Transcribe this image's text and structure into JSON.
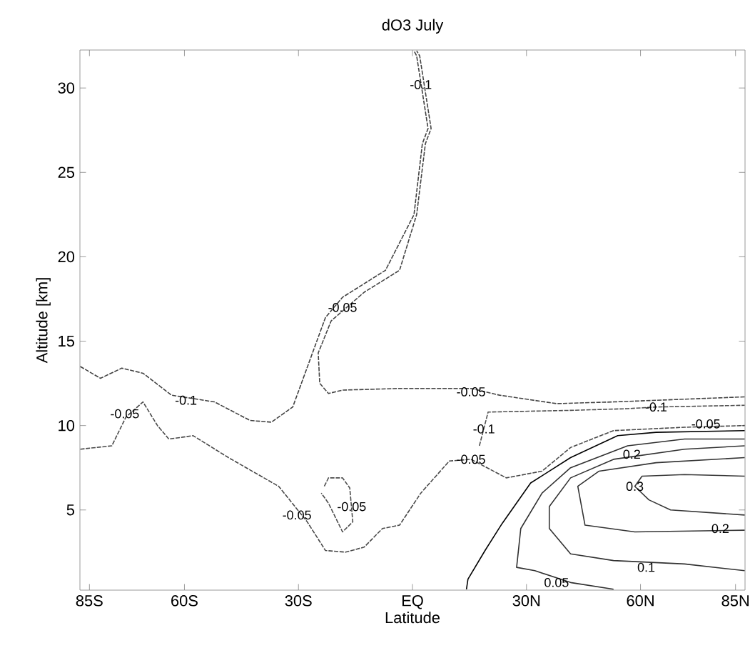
{
  "chart_data": {
    "type": "line",
    "title": "dO3 July",
    "xlabel": "Latitude",
    "ylabel": "Altitude [km]",
    "xlim": [
      -87.5,
      87.5
    ],
    "ylim": [
      0.25,
      32.25
    ],
    "xticks": [
      {
        "value": -85,
        "label": "85S"
      },
      {
        "value": -60,
        "label": "60S"
      },
      {
        "value": -30,
        "label": "30S"
      },
      {
        "value": 0,
        "label": "EQ"
      },
      {
        "value": 30,
        "label": "30N"
      },
      {
        "value": 60,
        "label": "60N"
      },
      {
        "value": 85,
        "label": "85N"
      }
    ],
    "yticks": [
      5,
      10,
      15,
      20,
      25,
      30
    ],
    "grid": false,
    "marker": "none",
    "series": [
      {
        "color": "#404040",
        "line_style": "dashed",
        "x": [
          -87.4,
          -82.1,
          -76.5,
          -70.9,
          -63.4,
          -52.1,
          -42.7,
          -37.1,
          -31.5,
          -22.9,
          -18.4,
          -7.1,
          0.4,
          2.6,
          4.1,
          1.1,
          0.4
        ],
        "values": [
          13.5,
          12.8,
          13.4,
          13.1,
          11.8,
          11.4,
          10.3,
          10.2,
          11.1,
          16.4,
          17.6,
          19.2,
          22.5,
          26.7,
          27.6,
          31.9,
          32.2
        ]
      },
      {
        "color": "#444444",
        "line_style": "dashed",
        "x": [
          87.4,
          52.9,
          37.9,
          22.9,
          15.4,
          -3.4,
          -18.4,
          -22.1,
          -24.4,
          -24.8,
          -21.4,
          -12.7,
          -3.4,
          1.1,
          3.4,
          4.9,
          1.9,
          1.1
        ],
        "values": [
          11.7,
          11.4,
          11.3,
          11.8,
          12.2,
          12.2,
          12.1,
          11.9,
          12.5,
          14.3,
          16.2,
          17.9,
          19.2,
          22.5,
          26.7,
          27.6,
          31.9,
          32.2
        ]
      },
      {
        "color": "#484848",
        "line_style": "dashed",
        "x": [
          -87.4,
          -79.1,
          -75.4,
          -70.9,
          -67.1,
          -64.1,
          -57.7,
          -48.4,
          -35.2,
          -27.7,
          -22.9,
          -17.6,
          -12.7,
          -7.9,
          -3.4,
          2.2,
          9.7,
          15.4,
          24.7,
          34.1,
          41.6,
          52.9,
          71.6,
          87.4
        ],
        "values": [
          8.6,
          8.8,
          10.5,
          11.4,
          10.0,
          9.2,
          9.4,
          8.1,
          6.4,
          4.3,
          2.6,
          2.5,
          2.8,
          3.9,
          4.1,
          6.0,
          7.9,
          8.0,
          6.9,
          7.3,
          8.7,
          9.7,
          9.9,
          10.0
        ]
      },
      {
        "color": "#4c4c4c",
        "line_style": "dashed",
        "x": [
          -23.2,
          -22.1,
          -18.4,
          -16.5,
          -15.7,
          -18.4,
          -22.1,
          -24.0
        ],
        "values": [
          6.4,
          6.9,
          6.9,
          6.3,
          4.3,
          3.7,
          5.4,
          6.0
        ]
      },
      {
        "color": "#505050",
        "line_style": "dashed",
        "x": [
          17.6,
          19.9,
          41.6,
          56.6,
          64.1,
          87.4
        ],
        "values": [
          8.8,
          10.8,
          10.9,
          11.0,
          11.1,
          11.2
        ]
      },
      {
        "color": "#000000",
        "line_style": "solid",
        "x": [
          14.2,
          14.6,
          19.1,
          23.6,
          31.1,
          41.6,
          54.0,
          64.1,
          87.4
        ],
        "values": [
          0.3,
          0.9,
          2.6,
          4.2,
          6.6,
          8.1,
          9.4,
          9.6,
          9.7
        ]
      },
      {
        "color": "#303030",
        "line_style": "solid",
        "x": [
          52.9,
          41.6,
          32.2,
          27.4,
          28.5,
          34.1,
          41.6,
          56.6,
          71.6,
          87.4
        ],
        "values": [
          0.3,
          0.7,
          1.4,
          1.6,
          3.9,
          6.0,
          7.5,
          8.8,
          9.2,
          9.2
        ]
      },
      {
        "color": "#323232",
        "line_style": "solid",
        "x": [
          87.4,
          71.6,
          52.9,
          41.6,
          36.0,
          36.0,
          41.6,
          52.9,
          71.6,
          87.4
        ],
        "values": [
          1.4,
          1.8,
          2.0,
          2.4,
          3.9,
          5.2,
          6.9,
          8.0,
          8.6,
          8.8
        ]
      },
      {
        "color": "#343434",
        "line_style": "solid",
        "x": [
          87.4,
          58.5,
          45.4,
          43.5,
          49.1,
          64.1,
          87.4
        ],
        "values": [
          3.8,
          3.7,
          4.1,
          6.4,
          7.3,
          7.8,
          8.1
        ]
      },
      {
        "color": "#363636",
        "line_style": "solid",
        "x": [
          87.4,
          67.9,
          62.2,
          58.5,
          60.4,
          71.6,
          87.4
        ],
        "values": [
          4.7,
          5.0,
          5.6,
          6.4,
          7.0,
          7.1,
          7.0
        ]
      }
    ],
    "annotations": [
      {
        "text": "-0.1",
        "x": 2.2,
        "y": 30.2
      },
      {
        "text": "-0.05",
        "x": -18.4,
        "y": 17.0
      },
      {
        "text": "-0.1",
        "x": -59.6,
        "y": 11.5
      },
      {
        "text": "-0.05",
        "x": -75.7,
        "y": 10.7
      },
      {
        "text": "-0.05",
        "x": -30.4,
        "y": 4.7
      },
      {
        "text": "-0.05",
        "x": -16.0,
        "y": 5.2
      },
      {
        "text": "-0.05",
        "x": 15.4,
        "y": 12.0
      },
      {
        "text": "-0.1",
        "x": 18.8,
        "y": 9.8
      },
      {
        "text": "-0.05",
        "x": 15.4,
        "y": 8.0
      },
      {
        "text": "-0.1",
        "x": 64.1,
        "y": 11.1
      },
      {
        "text": "-0.05",
        "x": 77.2,
        "y": 10.1
      },
      {
        "text": "0.2",
        "x": 57.7,
        "y": 8.3
      },
      {
        "text": "0.3",
        "x": 58.5,
        "y": 6.4
      },
      {
        "text": "0.2",
        "x": 81.0,
        "y": 3.9
      },
      {
        "text": "0.1",
        "x": 61.5,
        "y": 1.6
      },
      {
        "text": "0.05",
        "x": 37.9,
        "y": 0.7
      }
    ]
  }
}
